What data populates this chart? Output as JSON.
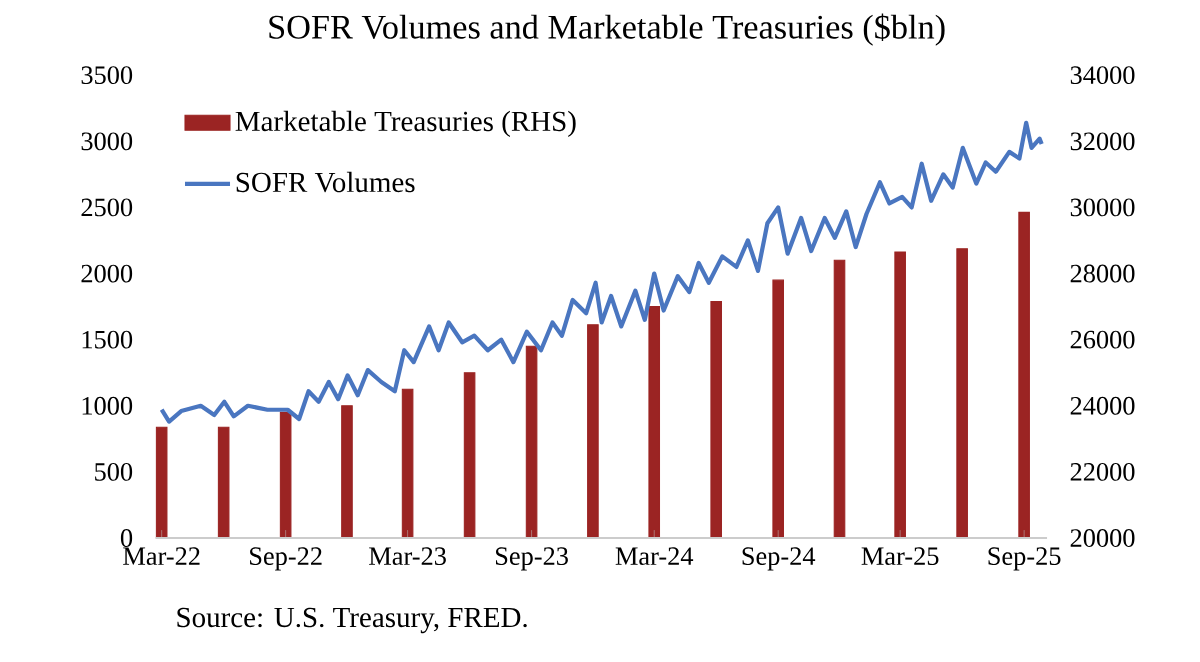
{
  "chart_data": {
    "type": "bar",
    "title": "SOFR Volumes and Marketable Treasuries ($bln)",
    "xlim": [
      "2022-02-20",
      "2025-10-05"
    ],
    "xticks": [
      {
        "value": "2022-03-01",
        "label": "Mar-22"
      },
      {
        "value": "2022-09-01",
        "label": "Sep-22"
      },
      {
        "value": "2023-03-01",
        "label": "Mar-23"
      },
      {
        "value": "2023-09-01",
        "label": "Sep-23"
      },
      {
        "value": "2024-03-01",
        "label": "Mar-24"
      },
      {
        "value": "2024-09-01",
        "label": "Sep-24"
      },
      {
        "value": "2025-03-01",
        "label": "Mar-25"
      },
      {
        "value": "2025-09-01",
        "label": "Sep-25"
      }
    ],
    "ylim": [
      0,
      3500
    ],
    "yticks": [
      0,
      500,
      1000,
      1500,
      2000,
      2500,
      3000,
      3500
    ],
    "y2lim": [
      20000,
      34000
    ],
    "y2ticks": [
      20000,
      22000,
      24000,
      26000,
      28000,
      30000,
      32000,
      34000
    ],
    "legend": "top left",
    "series": [
      {
        "name": "Marketable Treasuries (RHS)",
        "axis": "y2",
        "color": "#9b2423",
        "x": [
          "2022-03-01",
          "2022-06-01",
          "2022-09-01",
          "2022-12-01",
          "2023-03-01",
          "2023-06-01",
          "2023-09-01",
          "2023-12-01",
          "2024-03-01",
          "2024-06-01",
          "2024-09-01",
          "2024-12-01",
          "2025-03-01",
          "2025-06-01",
          "2025-09-01"
        ],
        "values": [
          23350,
          23350,
          23800,
          24000,
          24500,
          25000,
          25800,
          26450,
          27000,
          27150,
          27800,
          28400,
          28650,
          28750,
          29850
        ]
      },
      {
        "name": "SOFR Volumes",
        "type": "line",
        "color": "#4a76c0",
        "x": [
          "2022-03-01",
          "2022-03-12",
          "2022-03-30",
          "2022-04-28",
          "2022-05-18",
          "2022-06-02",
          "2022-06-16",
          "2022-07-07",
          "2022-08-05",
          "2022-09-04",
          "2022-09-21",
          "2022-10-05",
          "2022-10-20",
          "2022-11-04",
          "2022-11-18",
          "2022-12-02",
          "2022-12-17",
          "2023-01-01",
          "2023-01-21",
          "2023-02-10",
          "2023-02-24",
          "2023-03-10",
          "2023-04-02",
          "2023-04-16",
          "2023-05-01",
          "2023-05-21",
          "2023-06-08",
          "2023-06-28",
          "2023-07-18",
          "2023-08-05",
          "2023-08-25",
          "2023-09-15",
          "2023-10-02",
          "2023-10-16",
          "2023-11-01",
          "2023-11-21",
          "2023-12-05",
          "2023-12-14",
          "2023-12-28",
          "2024-01-12",
          "2024-02-02",
          "2024-02-16",
          "2024-03-01",
          "2024-03-15",
          "2024-04-05",
          "2024-04-22",
          "2024-05-06",
          "2024-05-21",
          "2024-06-10",
          "2024-07-01",
          "2024-07-18",
          "2024-08-02",
          "2024-08-16",
          "2024-09-01",
          "2024-09-15",
          "2024-10-05",
          "2024-10-20",
          "2024-11-09",
          "2024-11-24",
          "2024-12-11",
          "2024-12-25",
          "2025-01-10",
          "2025-01-30",
          "2025-02-13",
          "2025-03-04",
          "2025-03-18",
          "2025-04-02",
          "2025-04-16",
          "2025-05-04",
          "2025-05-18",
          "2025-06-02",
          "2025-06-22",
          "2025-07-06",
          "2025-07-21",
          "2025-08-10",
          "2025-08-25",
          "2025-09-04",
          "2025-09-12",
          "2025-09-24",
          "2025-09-27"
        ],
        "values": [
          970,
          880,
          960,
          1000,
          930,
          1030,
          920,
          1000,
          970,
          970,
          900,
          1110,
          1030,
          1180,
          1050,
          1230,
          1080,
          1270,
          1180,
          1110,
          1420,
          1330,
          1600,
          1420,
          1630,
          1480,
          1530,
          1420,
          1500,
          1330,
          1560,
          1420,
          1630,
          1530,
          1800,
          1700,
          1930,
          1630,
          1830,
          1600,
          1870,
          1650,
          2000,
          1720,
          1980,
          1860,
          2080,
          1930,
          2130,
          2050,
          2250,
          2020,
          2380,
          2500,
          2150,
          2420,
          2170,
          2420,
          2270,
          2470,
          2200,
          2450,
          2690,
          2530,
          2580,
          2500,
          2830,
          2550,
          2750,
          2650,
          2950,
          2680,
          2840,
          2770,
          2920,
          2870,
          3140,
          2950,
          3020,
          2980
        ]
      }
    ],
    "annotations": [
      "Source: U.S. Treasury, FRED."
    ]
  }
}
